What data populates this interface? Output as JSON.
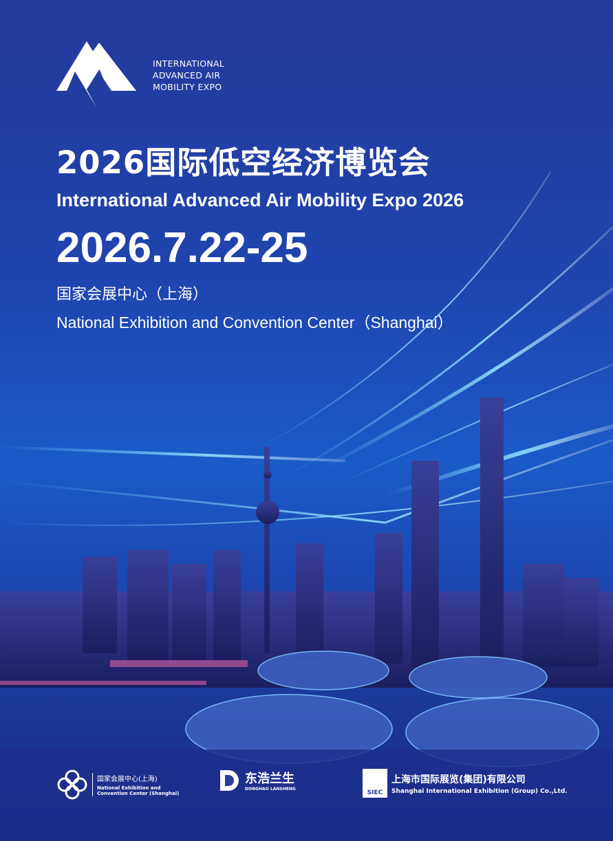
{
  "logo": {
    "lines": [
      "INTERNATIONAL",
      "ADVANCED AIR",
      "MOBILITY EXPO"
    ]
  },
  "title_cn": "2026国际低空经济博览会",
  "title_en": "International Advanced Air Mobility Expo 2026",
  "date": "2026.7.22-25",
  "venue_cn": "国家会展中心（上海）",
  "venue_en": "National Exhibition and Convention Center（Shanghai）",
  "sponsors": [
    {
      "cn": "国家会展中心(上海)",
      "en1": "National Exhibition and",
      "en2": "Convention Center (Shanghai)",
      "icon": "clover-logo-icon"
    },
    {
      "cn": "东浩兰生",
      "en1": "DONGHAO LANSHENG",
      "icon": "d-logo-icon"
    },
    {
      "cn": "上海市国际展览(集团)有限公司",
      "en1": "Shanghai International Exhibition (Group) Co.,Ltd.",
      "badge": "SIEC",
      "icon": "siec-logo-icon"
    }
  ],
  "colors": {
    "background": "#24399a",
    "accent": "#2ea8ff"
  }
}
